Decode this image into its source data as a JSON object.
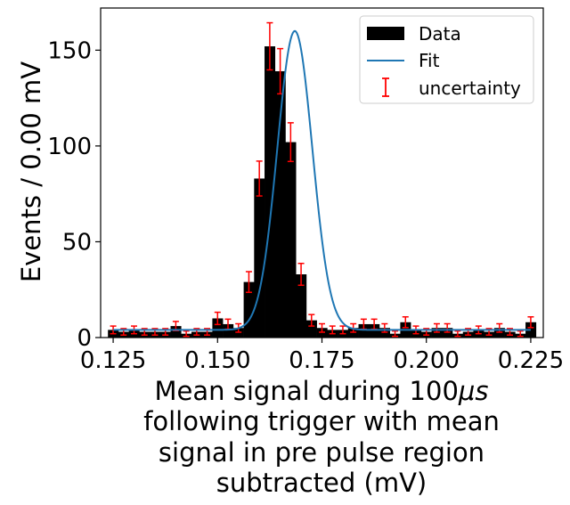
{
  "chart_data": {
    "type": "bar",
    "title": "",
    "xlabel_lines": [
      "Mean signal during 100",
      "following trigger with mean",
      "signal in pre pulse region",
      "subtracted (mV)"
    ],
    "xlabel_mu": "μs",
    "ylabel": "Events / 0.00 mV",
    "xlim": [
      0.122,
      0.228
    ],
    "ylim": [
      0,
      172
    ],
    "xticks": [
      0.125,
      0.15,
      0.175,
      0.2,
      0.225
    ],
    "xtick_labels": [
      "0.125",
      "0.150",
      "0.175",
      "0.200",
      "0.225"
    ],
    "yticks": [
      0,
      50,
      100,
      150
    ],
    "ytick_labels": [
      "0",
      "50",
      "100",
      "150"
    ],
    "bin_width": 0.0025,
    "bin_centers": [
      0.125,
      0.1275,
      0.13,
      0.1325,
      0.135,
      0.1375,
      0.14,
      0.1425,
      0.145,
      0.1475,
      0.15,
      0.1525,
      0.155,
      0.1575,
      0.16,
      0.1625,
      0.165,
      0.1675,
      0.17,
      0.1725,
      0.175,
      0.1775,
      0.18,
      0.1825,
      0.185,
      0.1875,
      0.19,
      0.1925,
      0.195,
      0.1975,
      0.2,
      0.2025,
      0.205,
      0.2075,
      0.21,
      0.2125,
      0.215,
      0.2175,
      0.22,
      0.2225,
      0.225
    ],
    "series": [
      {
        "name": "Data",
        "values": [
          4,
          3,
          4,
          3,
          3,
          3,
          6,
          2,
          3,
          3,
          10,
          7,
          5,
          29,
          83,
          152,
          139,
          102,
          33,
          9,
          5,
          4,
          4,
          5,
          7,
          7,
          5,
          2,
          8,
          4,
          3,
          5,
          5,
          2,
          3,
          4,
          3,
          5,
          3,
          2,
          8
        ],
        "errors": [
          2,
          1.7,
          2,
          1.7,
          1.7,
          1.7,
          2.4,
          1.4,
          1.7,
          1.7,
          3.2,
          2.6,
          2.2,
          5.4,
          9.1,
          12.3,
          11.8,
          10.1,
          5.7,
          3,
          2.2,
          2,
          2,
          2.2,
          2.6,
          2.6,
          2.2,
          1.4,
          2.8,
          2,
          1.7,
          2.2,
          2.2,
          1.4,
          1.7,
          2,
          1.7,
          2.2,
          1.7,
          1.4,
          2.8
        ],
        "color": "#000000"
      },
      {
        "name": "Fit",
        "model": "gaussian_plus_constant",
        "amplitude": 156,
        "mean": 0.1685,
        "sigma": 0.0042,
        "baseline": 4,
        "color": "#1f77b4"
      }
    ],
    "uncertainty_label": "uncertainty",
    "uncertainty_color": "#ff0000",
    "legend_position": "top-right"
  }
}
